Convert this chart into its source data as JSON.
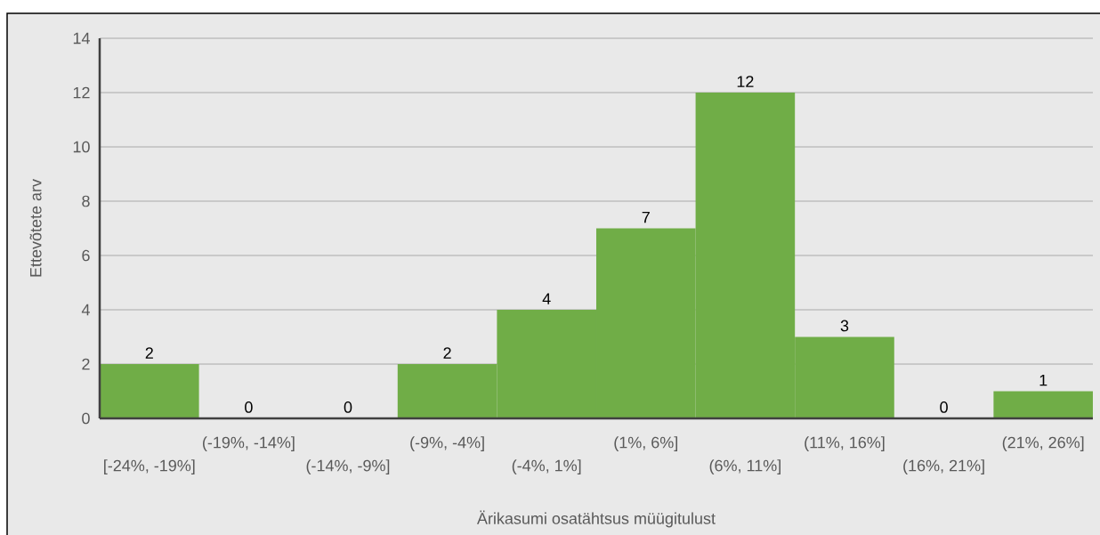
{
  "chart_data": {
    "type": "bar",
    "xlabel": "Ärikasumi osatähtsus müügitulust",
    "ylabel": "Ettevõtete arv",
    "categories": [
      "[-24%, -19%]",
      "(-19%, -14%]",
      "(-14%, -9%]",
      "(-9%, -4%]",
      "(-4%, 1%]",
      "(1%, 6%]",
      "(6%, 11%]",
      "(11%, 16%]",
      "(16%, 21%]",
      "(21%, 26%]"
    ],
    "values": [
      2,
      0,
      0,
      2,
      4,
      7,
      12,
      3,
      0,
      1
    ],
    "color": "#70ad47",
    "ylim": [
      0,
      14
    ],
    "yticks": [
      0,
      2,
      4,
      6,
      8,
      10,
      12,
      14
    ],
    "grid": "y",
    "data_labels": true
  }
}
